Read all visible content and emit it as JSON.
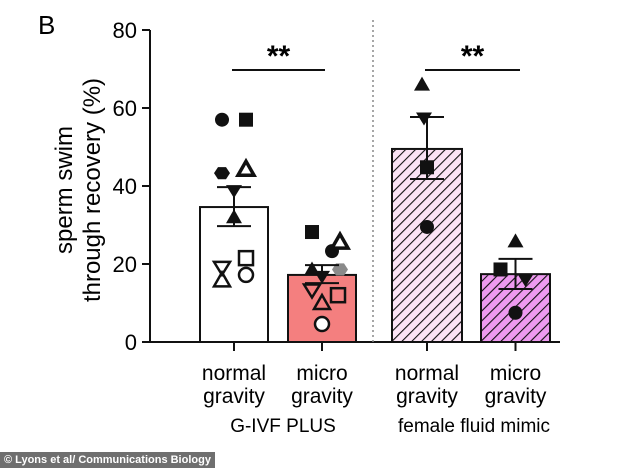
{
  "chart_data": {
    "type": "bar",
    "panel_label": "B",
    "ylabel_line1": "sperm swim",
    "ylabel_line2": "through recovery (%)",
    "ylim": [
      0,
      80
    ],
    "yticks": [
      "0",
      "20",
      "40",
      "60",
      "80"
    ],
    "grid": false,
    "categories": [
      {
        "line1": "normal",
        "line2": "gravity"
      },
      {
        "line1": "micro",
        "line2": "gravity"
      },
      {
        "line1": "normal",
        "line2": "gravity"
      },
      {
        "line1": "micro",
        "line2": "gravity"
      }
    ],
    "groups": [
      "G-IVF PLUS",
      "female fluid mimic"
    ],
    "bars": [
      {
        "mean": 34.6,
        "sem_low": 29.7,
        "sem_high": 39.7,
        "fill": "#ffffff",
        "hatched": false,
        "points": [
          {
            "v": 57,
            "m": "circle-filled"
          },
          {
            "v": 57,
            "m": "square-filled"
          },
          {
            "v": 43.3,
            "m": "hexagon-filled"
          },
          {
            "v": 44.3,
            "m": "triangle-half"
          },
          {
            "v": 38.7,
            "m": "down-triangle-filled"
          },
          {
            "v": 32,
            "m": "triangle-filled"
          },
          {
            "v": 19,
            "m": "down-triangle-open"
          },
          {
            "v": 15.8,
            "m": "triangle-open"
          },
          {
            "v": 21.5,
            "m": "square-open"
          },
          {
            "v": 17.2,
            "m": "circle-open"
          }
        ]
      },
      {
        "mean": 17.2,
        "sem_low": 15.1,
        "sem_high": 19.7,
        "fill": "#f47f7f",
        "hatched": false,
        "points": [
          {
            "v": 28.2,
            "m": "square-filled"
          },
          {
            "v": 18.6,
            "m": "triangle-filled"
          },
          {
            "v": 13.2,
            "m": "down-triangle-open"
          },
          {
            "v": 23.3,
            "m": "circle-filled"
          },
          {
            "v": 16.7,
            "m": "down-triangle-filled"
          },
          {
            "v": 25.6,
            "m": "triangle-half"
          },
          {
            "v": 18.6,
            "m": "hexagon-gray"
          },
          {
            "v": 12,
            "m": "square-open"
          },
          {
            "v": 10,
            "m": "triangle-open"
          },
          {
            "v": 4.6,
            "m": "circle-open"
          }
        ]
      },
      {
        "mean": 49.5,
        "sem_low": 41.8,
        "sem_high": 57.7,
        "fill": "#fbe3f5",
        "hatched": true,
        "points": [
          {
            "v": 66,
            "m": "triangle-filled"
          },
          {
            "v": 57.3,
            "m": "down-triangle-filled"
          },
          {
            "v": 44.8,
            "m": "square-filled"
          },
          {
            "v": 29.5,
            "m": "circle-filled"
          }
        ]
      },
      {
        "mean": 17.4,
        "sem_low": 13.6,
        "sem_high": 21.3,
        "fill": "#ee9af0",
        "hatched": true,
        "points": [
          {
            "v": 25.8,
            "m": "triangle-filled"
          },
          {
            "v": 18.6,
            "m": "square-filled"
          },
          {
            "v": 15.9,
            "m": "down-triangle-filled"
          },
          {
            "v": 7.5,
            "m": "circle-filled"
          }
        ]
      }
    ],
    "significance": [
      {
        "between": [
          0,
          1
        ],
        "label": "**"
      },
      {
        "between": [
          2,
          3
        ],
        "label": "**"
      }
    ]
  },
  "credit": "© Lyons et al/ Communications Biology"
}
